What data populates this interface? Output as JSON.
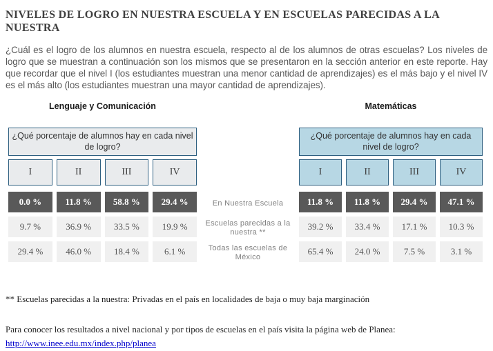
{
  "page": {
    "title": "NIVELES DE LOGRO EN NUESTRA ESCUELA Y EN ESCUELAS PARECIDAS A LA NUESTRA",
    "intro": "¿Cuál es el logro de los alumnos en nuestra escuela, respecto al de los alumnos de otras escuelas? Los niveles de logro que se muestran a continuación son los mismos que se presentaron en la sección anterior en este reporte. Hay que recordar que el nivel I (los estudiantes muestran una menor cantidad de aprendizajes) es el más bajo y el nivel IV es el más alto (los estudiantes muestran una mayor cantidad de aprendizajes)."
  },
  "row_labels": [
    "En Nuestra Escuela",
    "Escuelas parecidas a la nuestra **",
    "Todas las escuelas de México"
  ],
  "tables": [
    {
      "subject": "Lenguaje y Comunicación",
      "question": "¿Qué porcentaje de alumnos hay en cada nivel de logro?",
      "levels": [
        "I",
        "II",
        "III",
        "IV"
      ],
      "rows": [
        [
          "0.0 %",
          "11.8 %",
          "58.8 %",
          "29.4 %"
        ],
        [
          "9.7 %",
          "36.9 %",
          "33.5 %",
          "19.9 %"
        ],
        [
          "29.4 %",
          "46.0 %",
          "18.4 %",
          "6.1 %"
        ]
      ]
    },
    {
      "subject": "Matemáticas",
      "question": "¿Qué porcentaje de alumnos hay en cada nivel de logro?",
      "levels": [
        "I",
        "II",
        "III",
        "IV"
      ],
      "rows": [
        [
          "11.8 %",
          "11.8 %",
          "29.4 %",
          "47.1 %"
        ],
        [
          "39.2 %",
          "33.4 %",
          "17.1 %",
          "10.3 %"
        ],
        [
          "65.4 %",
          "24.0 %",
          "7.5 %",
          "3.1 %"
        ]
      ]
    }
  ],
  "footnote": "** Escuelas parecidas a la nuestra: Privadas en el país en localidades de baja o muy baja marginación",
  "planea": {
    "text": "Para conocer los resultados a nivel nacional y por tipos de escuelas en el país visita la página web de Planea:",
    "url": "http://www.inee.edu.mx/index.php/planea"
  },
  "colors": {
    "border_blue": "#2e5f80",
    "header_gray": "#e9ebed",
    "header_blue": "#b7d7e4",
    "row_dark": "#595959",
    "row_light": "#f0f0f0",
    "link_blue": "#0000cc"
  }
}
